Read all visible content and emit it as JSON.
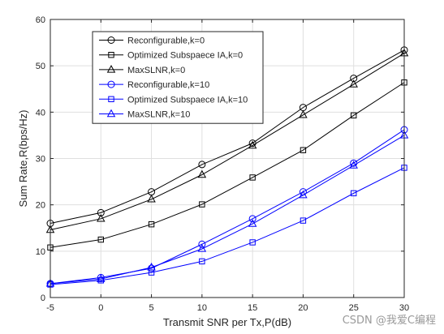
{
  "chart_data": {
    "type": "line",
    "title": "",
    "xlabel": "Transmit SNR per Tx,P(dB)",
    "ylabel": "Sum Rate,R(bps/Hz)",
    "xlim": [
      -5,
      30
    ],
    "ylim": [
      0,
      60
    ],
    "xticks": [
      -5,
      0,
      5,
      10,
      15,
      20,
      25,
      30
    ],
    "yticks": [
      0,
      10,
      20,
      30,
      40,
      50,
      60
    ],
    "grid": true,
    "legend_position": "top-left",
    "x": [
      -5,
      0,
      5,
      10,
      15,
      20,
      25,
      30
    ],
    "series": [
      {
        "name": "Reconfigurable,k=0",
        "color": "#000000",
        "marker": "circle",
        "values": [
          16.0,
          18.3,
          22.8,
          28.7,
          33.3,
          41.0,
          47.3,
          53.4
        ]
      },
      {
        "name": "Optimized Subspaece IA,k=0",
        "color": "#000000",
        "marker": "square",
        "values": [
          10.8,
          12.5,
          15.8,
          20.1,
          25.9,
          31.8,
          39.3,
          46.4
        ]
      },
      {
        "name": "MaxSLNR,k=0",
        "color": "#000000",
        "marker": "triangle",
        "values": [
          14.6,
          17.0,
          21.2,
          26.5,
          32.8,
          39.4,
          46.0,
          52.7
        ]
      },
      {
        "name": "Reconfigurable,k=10",
        "color": "#0000ff",
        "marker": "circle",
        "values": [
          3.0,
          4.3,
          6.3,
          11.5,
          17.0,
          22.8,
          29.0,
          36.2
        ]
      },
      {
        "name": "Optimized Subspaece IA,k=10",
        "color": "#0000ff",
        "marker": "square",
        "values": [
          2.8,
          3.7,
          5.4,
          7.8,
          11.9,
          16.6,
          22.5,
          28.0
        ]
      },
      {
        "name": "MaxSLNR,k=10",
        "color": "#0000ff",
        "marker": "triangle",
        "values": [
          3.0,
          4.0,
          6.5,
          10.5,
          15.9,
          22.1,
          28.5,
          35.0
        ]
      }
    ]
  },
  "watermark": "CSDN @我爱C编程"
}
